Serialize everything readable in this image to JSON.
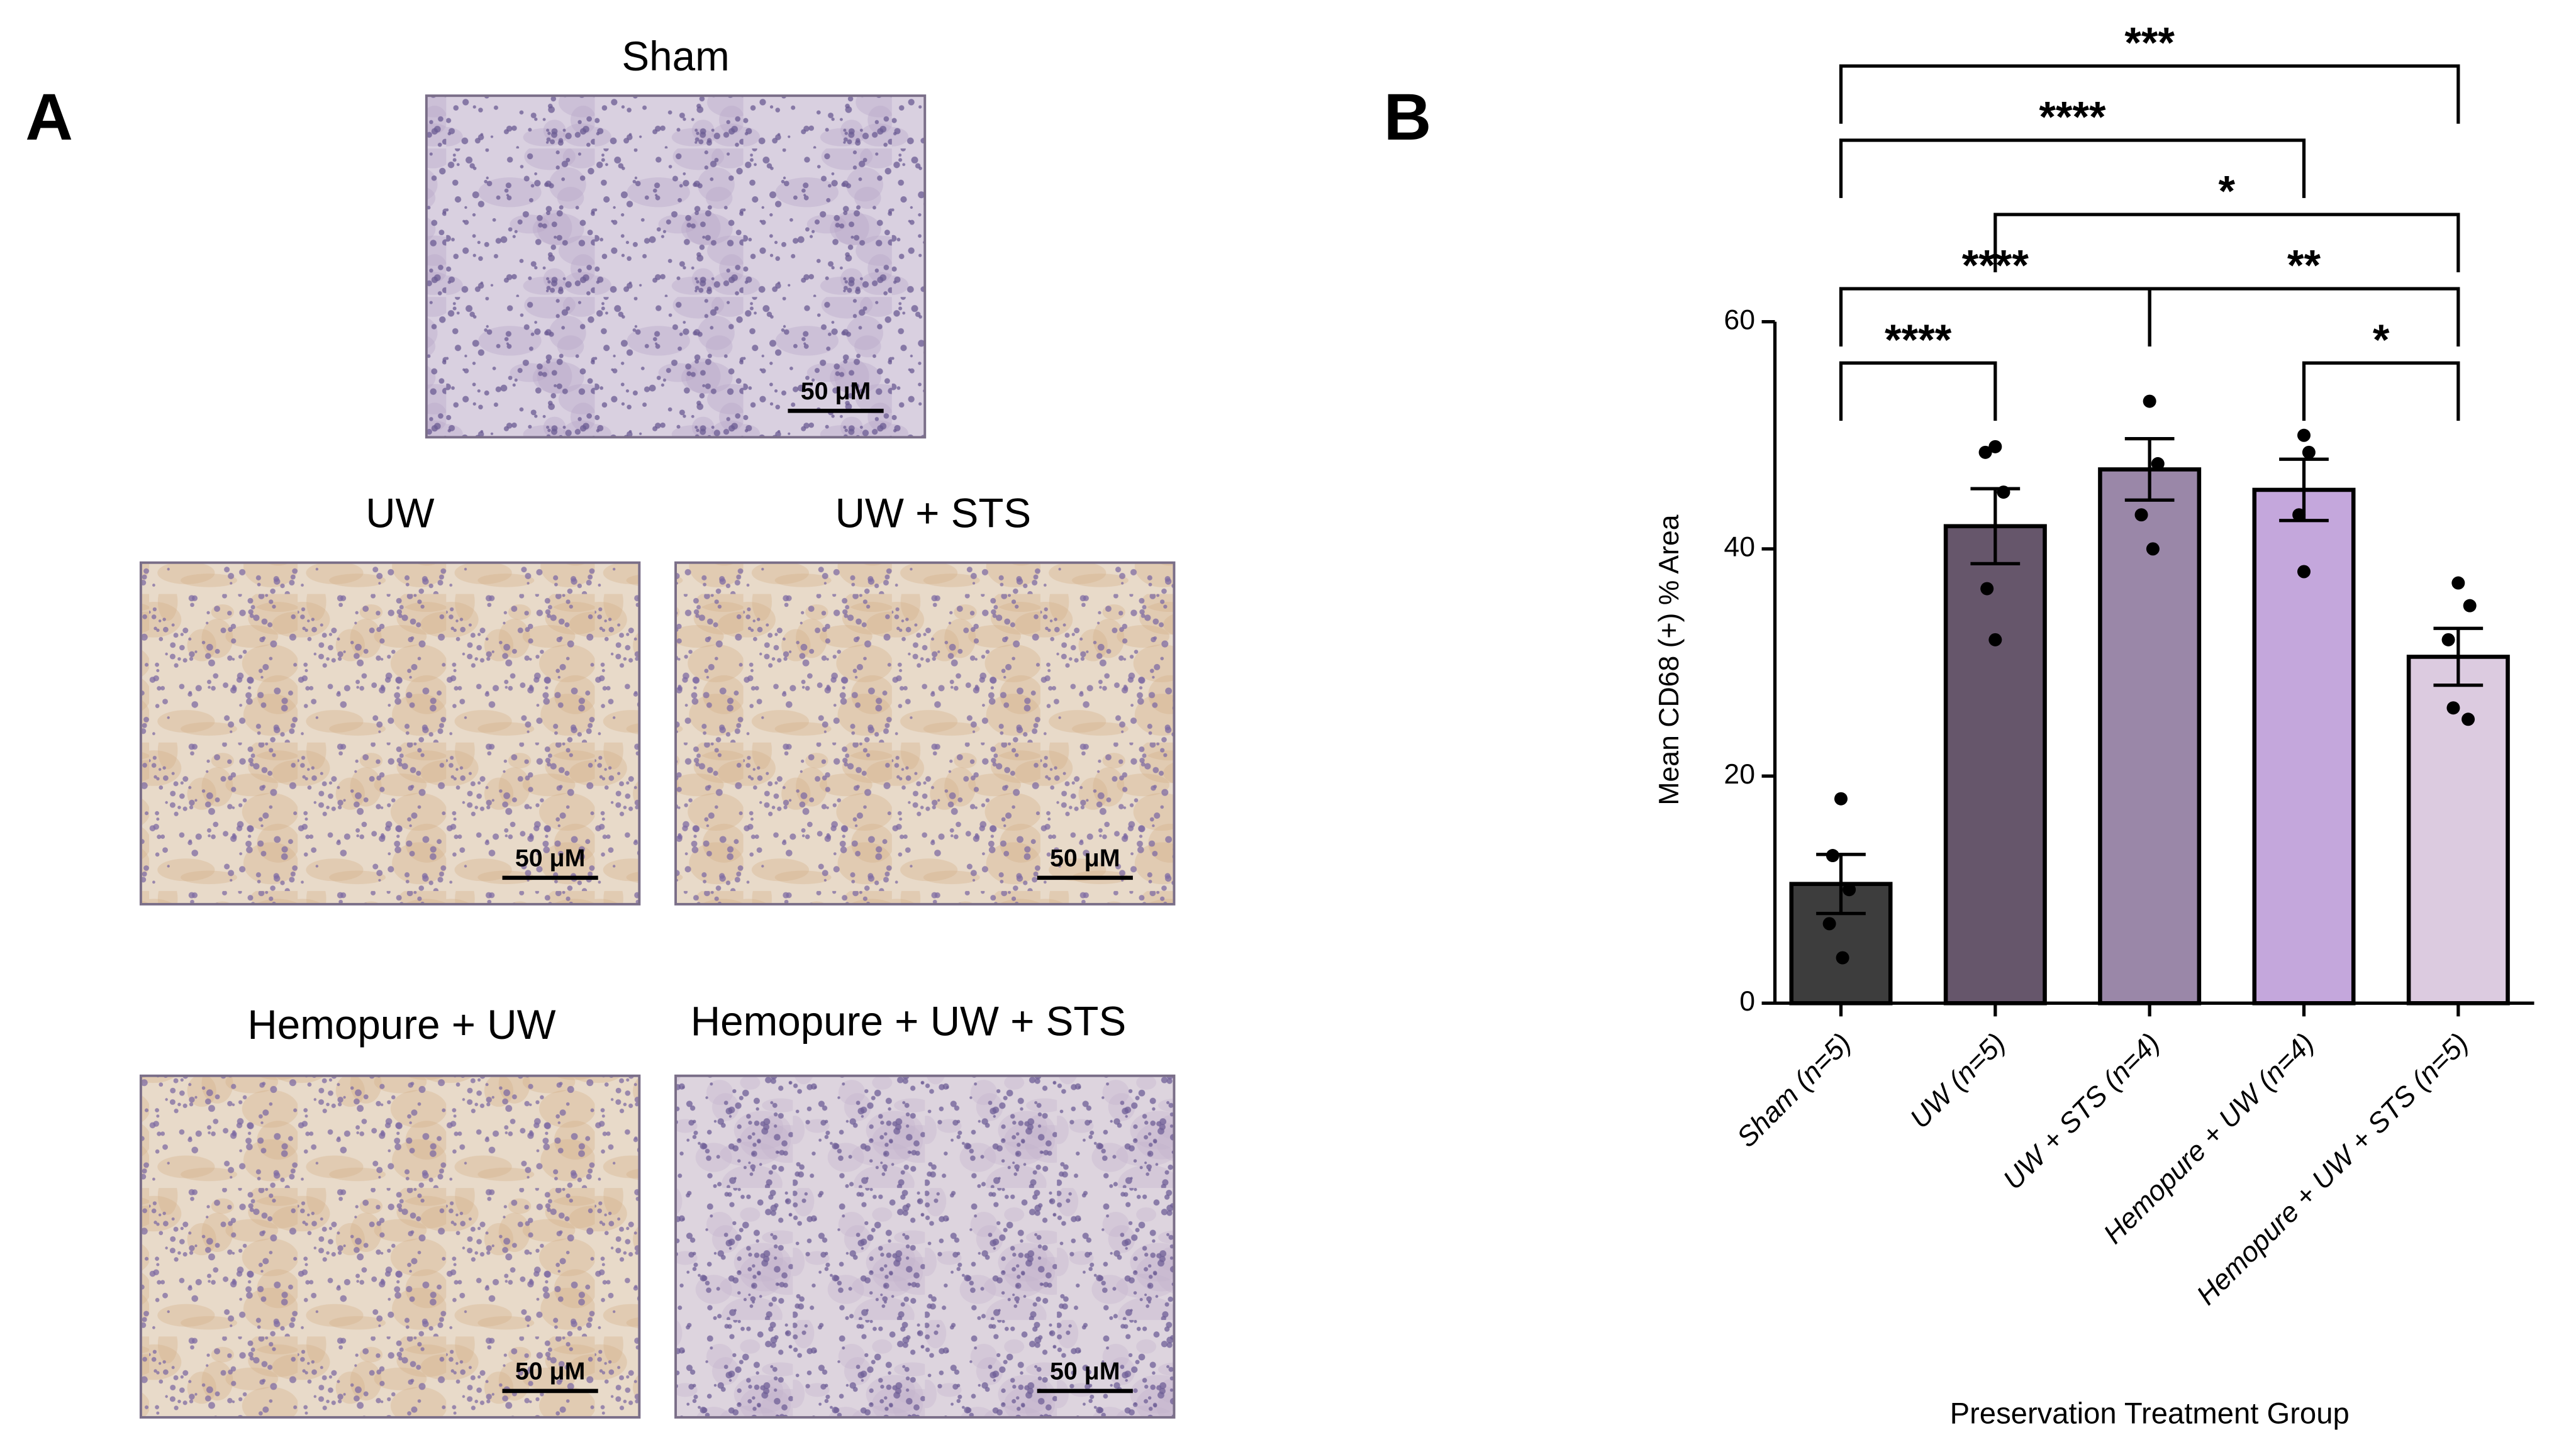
{
  "panel_a": {
    "label": "A",
    "images": [
      {
        "title": "Sham",
        "scale_bar": "50 μM"
      },
      {
        "title": "UW",
        "scale_bar": "50 μM"
      },
      {
        "title": "UW + STS",
        "scale_bar": "50 μM"
      },
      {
        "title": "Hemopure + UW",
        "scale_bar": "50 μM"
      },
      {
        "title": "Hemopure + UW + STS",
        "scale_bar": "50 μM"
      }
    ]
  },
  "chart_data": {
    "type": "bar",
    "panel_label": "B",
    "ylabel": "Mean CD68 (+) % Area",
    "xlabel": "Preservation Treatment Group",
    "categories": [
      "Sham (n=5)",
      "UW (n=5)",
      "UW + STS (n=4)",
      "Hemopure + UW (n=4)",
      "Hemopure + UW + STS (n=5)"
    ],
    "values": [
      10.5,
      42,
      47,
      45.2,
      30.5
    ],
    "errors": [
      2.6,
      3.3,
      2.7,
      2.7,
      2.5
    ],
    "points": [
      [
        18,
        13,
        10,
        7,
        4
      ],
      [
        49,
        48.5,
        45,
        36.5,
        32
      ],
      [
        53,
        47.5,
        43,
        40
      ],
      [
        50,
        48.5,
        43,
        38
      ],
      [
        37,
        35,
        32,
        26,
        25
      ]
    ],
    "colors": [
      "#3d3d3d",
      "#66566b",
      "#9a87a8",
      "#c4a7dc",
      "#dccbe0"
    ],
    "ylim": [
      0,
      60
    ],
    "yticks": [
      0,
      20,
      40,
      60
    ],
    "significance": [
      {
        "from": 0,
        "to": 4,
        "label": "***"
      },
      {
        "from": 1,
        "to": 4,
        "label": "*"
      },
      {
        "from": 0,
        "to": 3,
        "label": "****"
      },
      {
        "from": 0,
        "to": 2,
        "label": "****"
      },
      {
        "from": 2,
        "to": 4,
        "label": "**"
      },
      {
        "from": 0,
        "to": 1,
        "label": "****"
      },
      {
        "from": 3,
        "to": 4,
        "label": "*"
      }
    ]
  }
}
